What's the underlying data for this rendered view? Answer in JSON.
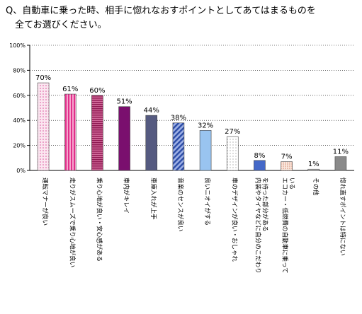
{
  "question": "Q、自動車に乗った時、相手に惚れなおすポイントとしてあてはまるものを\n　全てお選びください。",
  "chart_data": {
    "type": "bar",
    "ylim": [
      0,
      100
    ],
    "yticks": [
      "0%",
      "20%",
      "40%",
      "60%",
      "80%",
      "100%"
    ],
    "grid": true,
    "categories": [
      "運転マナーが良い",
      "走りがスムーズで乗り心地が良い",
      "乗り心地が良い・安心感がある",
      "車内がキレイ",
      "車庫入れが上手",
      "音楽のセンスが良い",
      "良いニオイがする",
      "車のデザインが良い・おしゃれ",
      "内装やタイヤなどに自分のこだわりを持った部分がある",
      "エコカー・低燃費の自動車に乗っている",
      "その他",
      "惚れ直すポイントは特にない"
    ],
    "values": [
      70,
      61,
      60,
      51,
      44,
      38,
      32,
      27,
      8,
      7,
      1,
      11
    ],
    "value_labels": [
      "70%",
      "61%",
      "60%",
      "51%",
      "44%",
      "38%",
      "32%",
      "27%",
      "8%",
      "7%",
      "1%",
      "11%"
    ],
    "colors": [
      "#f6cfe2",
      "#e7479a",
      "#b22a6a",
      "#7a0f6e",
      "#555a80",
      "#3d53a6",
      "#99c4f0",
      "#ffffff",
      "#4468c8",
      "#f4d7c8",
      "#d0d0d0",
      "#8a8a8a"
    ]
  }
}
